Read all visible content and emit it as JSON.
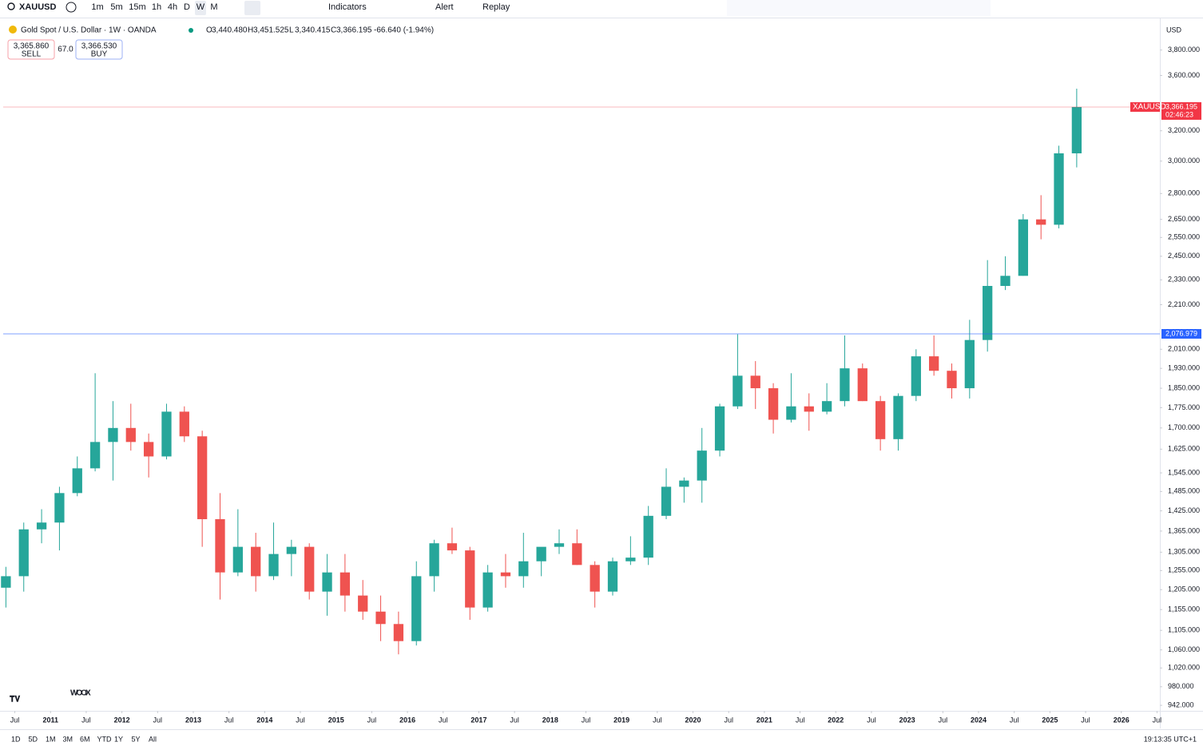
{
  "toolbar": {
    "symbol": "XAUUSD",
    "intervals": [
      "1m",
      "5m",
      "15m",
      "1h",
      "4h",
      "D",
      "W",
      "M"
    ],
    "buttons": [
      "Indicators",
      "Alert",
      "Replay"
    ]
  },
  "legend": {
    "title": "Gold Spot / U.S. Dollar · 1W · OANDA",
    "ohlc": [
      [
        "O",
        "3,440.480"
      ],
      [
        "H",
        "3,451.525"
      ],
      [
        "L",
        "3,340.415"
      ],
      [
        "C",
        "3,366.195"
      ]
    ],
    "change": "-66.640 (-1.94%)",
    "sell": {
      "price": "3,365.860",
      "label": "SELL"
    },
    "spread": "67.0",
    "buy": {
      "price": "3,366.530",
      "label": "BUY"
    }
  },
  "currency": "USD",
  "watermark": "WOOX",
  "ranges": [
    "1D",
    "5D",
    "1M",
    "3M",
    "6M",
    "YTD",
    "1Y",
    "5Y",
    "All"
  ],
  "clock": "19:13:35 UTC+1",
  "chart_data": {
    "type": "candlestick",
    "log_scale": true,
    "grid": false,
    "up_color": "#26a69a",
    "down_color": "#ef5350",
    "x": [
      2010.375,
      2010.625,
      2010.875,
      2011.125,
      2011.375,
      2011.625,
      2011.875,
      2012.125,
      2012.375,
      2012.625,
      2012.875,
      2013.125,
      2013.375,
      2013.625,
      2013.875,
      2014.125,
      2014.375,
      2014.625,
      2014.875,
      2015.125,
      2015.375,
      2015.625,
      2015.875,
      2016.125,
      2016.375,
      2016.625,
      2016.875,
      2017.125,
      2017.375,
      2017.625,
      2017.875,
      2018.125,
      2018.375,
      2018.625,
      2018.875,
      2019.125,
      2019.375,
      2019.625,
      2019.875,
      2020.125,
      2020.375,
      2020.625,
      2020.875,
      2021.125,
      2021.375,
      2021.625,
      2021.875,
      2022.125,
      2022.375,
      2022.625,
      2022.875,
      2023.125,
      2023.375,
      2023.625,
      2023.875,
      2024.125,
      2024.375,
      2024.625,
      2024.875,
      2025.125,
      2025.375
    ],
    "open": [
      1210,
      1240,
      1370,
      1390,
      1480,
      1560,
      1650,
      1700,
      1650,
      1600,
      1760,
      1670,
      1400,
      1250,
      1320,
      1240,
      1300,
      1320,
      1200,
      1250,
      1190,
      1150,
      1120,
      1080,
      1240,
      1330,
      1310,
      1160,
      1250,
      1240,
      1280,
      1320,
      1330,
      1270,
      1200,
      1280,
      1290,
      1410,
      1500,
      1520,
      1620,
      1780,
      1900,
      1850,
      1730,
      1780,
      1760,
      1800,
      1930,
      1800,
      1660,
      1820,
      1980,
      1920,
      1850,
      2050,
      2300,
      2350,
      2650,
      2620,
      3050
    ],
    "high": [
      1265,
      1390,
      1430,
      1500,
      1600,
      1910,
      1800,
      1790,
      1680,
      1790,
      1780,
      1690,
      1480,
      1430,
      1360,
      1390,
      1340,
      1330,
      1300,
      1300,
      1230,
      1190,
      1150,
      1280,
      1340,
      1375,
      1320,
      1270,
      1300,
      1360,
      1300,
      1370,
      1370,
      1280,
      1290,
      1350,
      1440,
      1560,
      1530,
      1700,
      1790,
      2075,
      1960,
      1870,
      1910,
      1830,
      1870,
      2070,
      1950,
      1820,
      1830,
      2010,
      2070,
      1950,
      2140,
      2430,
      2450,
      2680,
      2790,
      3100,
      3500
    ],
    "low": [
      1160,
      1200,
      1330,
      1310,
      1470,
      1550,
      1520,
      1620,
      1530,
      1590,
      1650,
      1320,
      1180,
      1240,
      1200,
      1230,
      1240,
      1180,
      1140,
      1150,
      1130,
      1080,
      1050,
      1070,
      1200,
      1300,
      1130,
      1150,
      1210,
      1210,
      1240,
      1300,
      1270,
      1160,
      1190,
      1270,
      1270,
      1400,
      1450,
      1450,
      1600,
      1770,
      1770,
      1680,
      1720,
      1690,
      1750,
      1780,
      1800,
      1620,
      1620,
      1800,
      1900,
      1810,
      1810,
      2000,
      2280,
      2350,
      2540,
      2600,
      2960
    ],
    "close": [
      1240,
      1370,
      1390,
      1480,
      1560,
      1650,
      1700,
      1650,
      1600,
      1760,
      1670,
      1400,
      1250,
      1320,
      1240,
      1300,
      1320,
      1200,
      1250,
      1190,
      1150,
      1120,
      1080,
      1240,
      1330,
      1310,
      1160,
      1250,
      1240,
      1280,
      1320,
      1330,
      1270,
      1200,
      1280,
      1290,
      1410,
      1500,
      1520,
      1620,
      1780,
      1900,
      1850,
      1730,
      1780,
      1760,
      1800,
      1930,
      1800,
      1660,
      1820,
      1980,
      1920,
      1850,
      2050,
      2300,
      2350,
      2650,
      2620,
      3050,
      3366.195
    ],
    "xlim": [
      2010.337,
      2026.54
    ],
    "xticks": [
      {
        "value": 2010.5,
        "label": "Jul"
      },
      2011,
      {
        "value": 2011.5,
        "label": "Jul"
      },
      2012,
      {
        "value": 2012.5,
        "label": "Jul"
      },
      2013,
      {
        "value": 2013.5,
        "label": "Jul"
      },
      2014,
      {
        "value": 2014.5,
        "label": "Jul"
      },
      2015,
      {
        "value": 2015.5,
        "label": "Jul"
      },
      2016,
      {
        "value": 2016.5,
        "label": "Jul"
      },
      2017,
      {
        "value": 2017.5,
        "label": "Jul"
      },
      2018,
      {
        "value": 2018.5,
        "label": "Jul"
      },
      2019,
      {
        "value": 2019.5,
        "label": "Jul"
      },
      2020,
      {
        "value": 2020.5,
        "label": "Jul"
      },
      2021,
      {
        "value": 2021.5,
        "label": "Jul"
      },
      2022,
      {
        "value": 2022.5,
        "label": "Jul"
      },
      2023,
      {
        "value": 2023.5,
        "label": "Jul"
      },
      2024,
      {
        "value": 2024.5,
        "label": "Jul"
      },
      2025,
      {
        "value": 2025.5,
        "label": "Jul"
      },
      2026,
      {
        "value": 2026.5,
        "label": "Jul"
      }
    ],
    "ylim": [
      931,
      4058
    ],
    "yticks": [
      {
        "value": 3800,
        "label": "3,800.000"
      },
      {
        "value": 3600,
        "label": "3,600.000"
      },
      {
        "value": 3200,
        "label": "3,200.000"
      },
      {
        "value": 3000,
        "label": "3,000.000"
      },
      {
        "value": 2800,
        "label": "2,800.000"
      },
      {
        "value": 2650,
        "label": "2,650.000"
      },
      {
        "value": 2550,
        "label": "2,550.000"
      },
      {
        "value": 2450,
        "label": "2,450.000"
      },
      {
        "value": 2330,
        "label": "2,330.000"
      },
      {
        "value": 2210,
        "label": "2,210.000"
      },
      {
        "value": 2010,
        "label": "2,010.000"
      },
      {
        "value": 1930,
        "label": "1,930.000"
      },
      {
        "value": 1850,
        "label": "1,850.000"
      },
      {
        "value": 1775,
        "label": "1,775.000"
      },
      {
        "value": 1700,
        "label": "1,700.000"
      },
      {
        "value": 1625,
        "label": "1,625.000"
      },
      {
        "value": 1545,
        "label": "1,545.000"
      },
      {
        "value": 1485,
        "label": "1,485.000"
      },
      {
        "value": 1425,
        "label": "1,425.000"
      },
      {
        "value": 1365,
        "label": "1,365.000"
      },
      {
        "value": 1305,
        "label": "1,305.000"
      },
      {
        "value": 1255,
        "label": "1,255.000"
      },
      {
        "value": 1205,
        "label": "1,205.000"
      },
      {
        "value": 1155,
        "label": "1,155.000"
      },
      {
        "value": 1105,
        "label": "1,105.000"
      },
      {
        "value": 1060,
        "label": "1,060.000"
      },
      {
        "value": 1020,
        "label": "1,020.000"
      },
      {
        "value": 980,
        "label": "980.000"
      },
      {
        "value": 942,
        "label": "942.000"
      }
    ],
    "price_lines": [
      {
        "value": 3366.195,
        "label": "3,366.195",
        "tag": "XAUUSD",
        "countdown": "02:46:23",
        "color": "#f23645"
      },
      {
        "value": 2076.979,
        "label": "2,076.979",
        "color": "#2962ff"
      }
    ]
  }
}
